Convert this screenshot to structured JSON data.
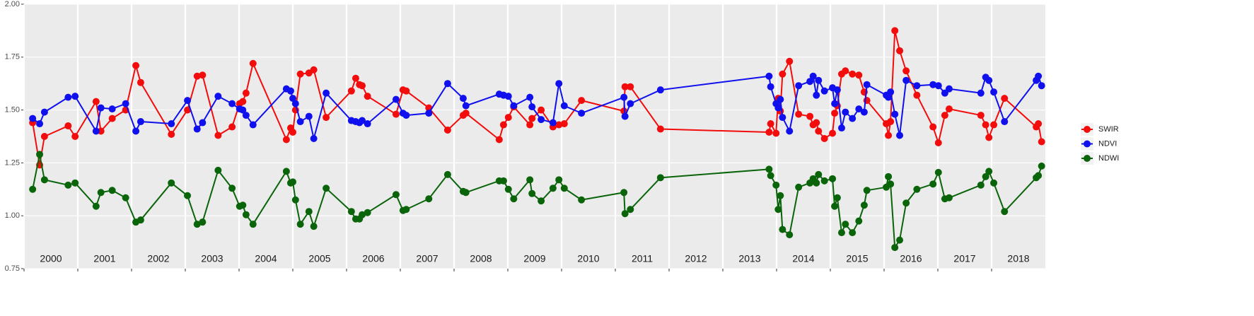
{
  "chart_data": {
    "type": "line",
    "xlim": [
      2000,
      2019
    ],
    "xticks": [
      {
        "value": 2000,
        "label": "2000"
      },
      {
        "value": 2001,
        "label": "2001"
      },
      {
        "value": 2002,
        "label": "2002"
      },
      {
        "value": 2003,
        "label": "2003"
      },
      {
        "value": 2004,
        "label": "2004"
      },
      {
        "value": 2005,
        "label": "2005"
      },
      {
        "value": 2006,
        "label": "2006"
      },
      {
        "value": 2007,
        "label": "2007"
      },
      {
        "value": 2008,
        "label": "2008"
      },
      {
        "value": 2009,
        "label": "2009"
      },
      {
        "value": 2010,
        "label": "2010"
      },
      {
        "value": 2011,
        "label": "2011"
      },
      {
        "value": 2012,
        "label": "2012"
      },
      {
        "value": 2013,
        "label": "2013"
      },
      {
        "value": 2014,
        "label": "2014"
      },
      {
        "value": 2015,
        "label": "2015"
      },
      {
        "value": 2016,
        "label": "2016"
      },
      {
        "value": 2017,
        "label": "2017"
      },
      {
        "value": 2018,
        "label": "2018"
      }
    ],
    "ylim": [
      0.75,
      2.0
    ],
    "yticks": [
      0.75,
      {
        "value": 1.0,
        "label": "1.00"
      },
      1.25,
      {
        "value": 1.5,
        "label": "1.50"
      },
      1.75,
      {
        "value": 2.0,
        "label": "2.00"
      }
    ],
    "grid": true,
    "legend": "right",
    "x": [
      2000.16,
      2000.29,
      2000.38,
      2000.82,
      2000.95,
      2001.34,
      2001.43,
      2001.64,
      2001.89,
      2002.08,
      2002.17,
      2002.74,
      2003.04,
      2003.22,
      2003.32,
      2003.61,
      2003.87,
      2004.01,
      2004.07,
      2004.13,
      2004.26,
      2004.88,
      2004.96,
      2005.0,
      2005.05,
      2005.14,
      2005.3,
      2005.39,
      2005.62,
      2006.09,
      2006.17,
      2006.24,
      2006.29,
      2006.39,
      2006.92,
      2007.05,
      2007.11,
      2007.53,
      2007.88,
      2008.17,
      2008.22,
      2008.84,
      2008.92,
      2009.01,
      2009.11,
      2009.41,
      2009.45,
      2009.62,
      2009.84,
      2009.95,
      2010.05,
      2010.37,
      2011.16,
      2011.18,
      2011.28,
      2011.84,
      2013.86,
      2013.89,
      2013.99,
      2014.03,
      2014.07,
      2014.11,
      2014.24,
      2014.41,
      2014.62,
      2014.68,
      2014.74,
      2014.78,
      2014.89,
      2015.04,
      2015.08,
      2015.13,
      2015.21,
      2015.28,
      2015.41,
      2015.53,
      2015.63,
      2015.68,
      2016.04,
      2016.08,
      2016.12,
      2016.2,
      2016.29,
      2016.41,
      2016.61,
      2016.91,
      2017.01,
      2017.13,
      2017.21,
      2017.8,
      2017.89,
      2017.95,
      2018.04,
      2018.24,
      2018.83,
      2018.87,
      2018.93
    ],
    "series": [
      {
        "name": "SWIR",
        "color": "#f20c0c",
        "values": [
          1.44,
          1.24,
          1.375,
          1.425,
          1.375,
          1.54,
          1.4,
          1.46,
          1.5,
          1.71,
          1.63,
          1.385,
          1.5,
          1.66,
          1.665,
          1.38,
          1.42,
          1.53,
          1.54,
          1.58,
          1.72,
          1.36,
          1.415,
          1.395,
          1.5,
          1.67,
          1.675,
          1.69,
          1.465,
          1.59,
          1.65,
          1.62,
          1.615,
          1.565,
          1.48,
          1.595,
          1.59,
          1.51,
          1.405,
          1.475,
          1.485,
          1.36,
          1.43,
          1.465,
          1.515,
          1.43,
          1.46,
          1.5,
          1.42,
          1.43,
          1.435,
          1.545,
          1.495,
          1.61,
          1.61,
          1.41,
          1.395,
          1.435,
          1.39,
          1.555,
          1.495,
          1.67,
          1.73,
          1.48,
          1.47,
          1.43,
          1.44,
          1.4,
          1.365,
          1.39,
          1.485,
          1.52,
          1.67,
          1.685,
          1.67,
          1.665,
          1.585,
          1.545,
          1.435,
          1.38,
          1.445,
          1.875,
          1.78,
          1.685,
          1.57,
          1.42,
          1.345,
          1.475,
          1.505,
          1.475,
          1.43,
          1.37,
          1.43,
          1.555,
          1.42,
          1.435,
          1.35
        ]
      },
      {
        "name": "NDVI",
        "color": "#1010ee",
        "values": [
          1.46,
          1.435,
          1.49,
          1.56,
          1.565,
          1.4,
          1.51,
          1.505,
          1.53,
          1.4,
          1.445,
          1.435,
          1.545,
          1.41,
          1.44,
          1.565,
          1.53,
          1.505,
          1.5,
          1.475,
          1.43,
          1.6,
          1.59,
          1.555,
          1.53,
          1.445,
          1.47,
          1.365,
          1.58,
          1.45,
          1.445,
          1.44,
          1.45,
          1.435,
          1.55,
          1.485,
          1.475,
          1.485,
          1.625,
          1.555,
          1.52,
          1.575,
          1.57,
          1.565,
          1.52,
          1.56,
          1.515,
          1.455,
          1.44,
          1.625,
          1.52,
          1.485,
          1.56,
          1.47,
          1.53,
          1.595,
          1.66,
          1.61,
          1.53,
          1.51,
          1.55,
          1.465,
          1.4,
          1.615,
          1.635,
          1.66,
          1.57,
          1.64,
          1.59,
          1.605,
          1.53,
          1.595,
          1.415,
          1.49,
          1.46,
          1.505,
          1.49,
          1.62,
          1.57,
          1.56,
          1.585,
          1.48,
          1.38,
          1.64,
          1.615,
          1.62,
          1.615,
          1.58,
          1.6,
          1.58,
          1.655,
          1.64,
          1.585,
          1.445,
          1.64,
          1.66,
          1.615
        ]
      },
      {
        "name": "NDWI",
        "color": "#0a640a",
        "values": [
          1.125,
          1.29,
          1.17,
          1.145,
          1.155,
          1.045,
          1.11,
          1.12,
          1.085,
          0.97,
          0.98,
          1.155,
          1.095,
          0.96,
          0.97,
          1.215,
          1.13,
          1.045,
          1.05,
          1.005,
          0.96,
          1.21,
          1.155,
          1.16,
          1.075,
          0.96,
          1.02,
          0.95,
          1.13,
          1.02,
          0.985,
          0.985,
          1.005,
          1.015,
          1.1,
          1.025,
          1.03,
          1.08,
          1.195,
          1.115,
          1.11,
          1.165,
          1.165,
          1.125,
          1.08,
          1.17,
          1.105,
          1.07,
          1.13,
          1.17,
          1.13,
          1.075,
          1.11,
          1.01,
          1.03,
          1.18,
          1.22,
          1.19,
          1.145,
          1.03,
          1.095,
          0.935,
          0.91,
          1.135,
          1.155,
          1.175,
          1.155,
          1.195,
          1.165,
          1.175,
          1.045,
          1.085,
          0.92,
          0.96,
          0.92,
          0.975,
          1.05,
          1.12,
          1.135,
          1.185,
          1.15,
          0.85,
          0.885,
          1.06,
          1.125,
          1.15,
          1.205,
          1.08,
          1.085,
          1.145,
          1.185,
          1.21,
          1.155,
          1.02,
          1.18,
          1.19,
          1.235
        ]
      }
    ]
  }
}
